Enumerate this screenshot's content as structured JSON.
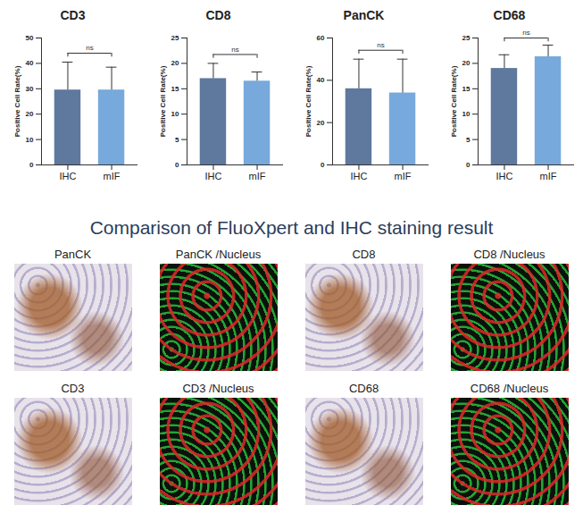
{
  "chart_data": [
    {
      "type": "bar",
      "title": "CD3",
      "categories": [
        "IHC",
        "mIF"
      ],
      "values": [
        29.5,
        29.5
      ],
      "errors": [
        11,
        9
      ],
      "colors": [
        "#5f789e",
        "#77a9dc"
      ],
      "ylim": [
        0,
        50
      ],
      "yticks": [
        0,
        10,
        20,
        30,
        40,
        50
      ],
      "y_label": "Positive Cell Rate(%)",
      "annotations": [
        {
          "text": "ns",
          "between": [
            "IHC",
            "mIF"
          ]
        }
      ]
    },
    {
      "type": "bar",
      "title": "CD8",
      "categories": [
        "IHC",
        "mIF"
      ],
      "values": [
        17,
        16.5
      ],
      "errors": [
        3,
        1.8
      ],
      "colors": [
        "#5f789e",
        "#77a9dc"
      ],
      "ylim": [
        0,
        25
      ],
      "yticks": [
        0,
        5,
        10,
        15,
        20,
        25
      ],
      "y_label": "Positive Cell Rate(%)",
      "annotations": [
        {
          "text": "ns",
          "between": [
            "IHC",
            "mIF"
          ]
        }
      ]
    },
    {
      "type": "bar",
      "title": "PanCK",
      "categories": [
        "IHC",
        "mIF"
      ],
      "values": [
        36,
        34
      ],
      "errors": [
        14,
        16
      ],
      "colors": [
        "#5f789e",
        "#77a9dc"
      ],
      "ylim": [
        0,
        60
      ],
      "yticks": [
        0,
        20,
        40,
        60
      ],
      "y_label": "Positive Cell Rate(%)",
      "annotations": [
        {
          "text": "ns",
          "between": [
            "IHC",
            "mIF"
          ]
        }
      ]
    },
    {
      "type": "bar",
      "title": "CD68",
      "categories": [
        "IHC",
        "mIF"
      ],
      "values": [
        19,
        21.3
      ],
      "errors": [
        2.7,
        2.3
      ],
      "colors": [
        "#5f789e",
        "#77a9dc"
      ],
      "ylim": [
        0,
        25
      ],
      "yticks": [
        0,
        5,
        10,
        15,
        20,
        25
      ],
      "y_label": "Positive Cell Rate(%)",
      "annotations": [
        {
          "text": "ns",
          "between": [
            "IHC",
            "mIF"
          ]
        }
      ]
    }
  ],
  "section_title": "Comparison of FluoXpert and IHC staining result",
  "images": [
    {
      "label": "PanCK"
    },
    {
      "label": "PanCK /Nucleus"
    },
    {
      "label": "CD8"
    },
    {
      "label": "CD8 /Nucleus"
    },
    {
      "label": "CD3"
    },
    {
      "label": "CD3 /Nucleus"
    },
    {
      "label": "CD68"
    },
    {
      "label": "CD68 /Nucleus"
    }
  ]
}
